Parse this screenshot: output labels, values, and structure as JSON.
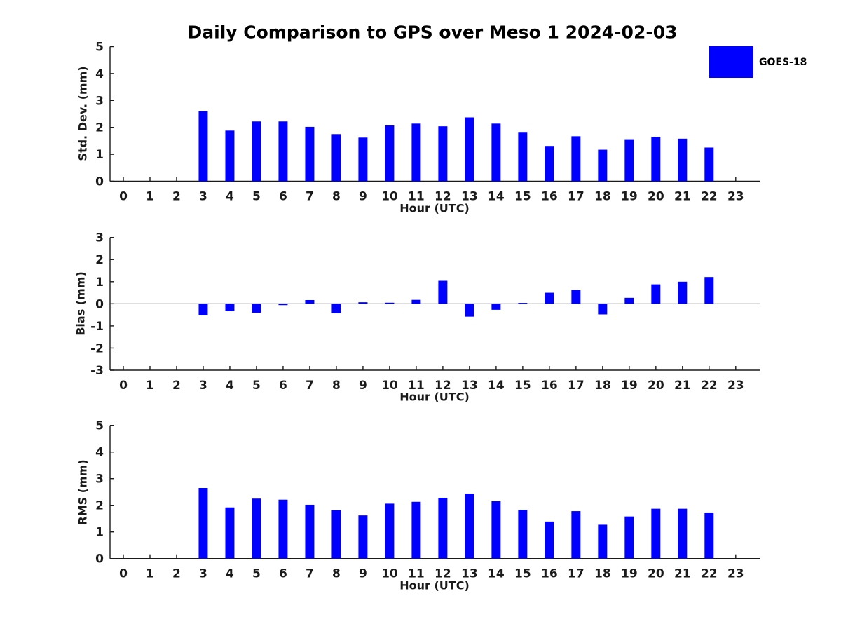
{
  "title": "Daily Comparison to GPS over Meso 1 2024-02-03",
  "legend": {
    "label": "GOES-18",
    "swatch_color": "#0000ff"
  },
  "palette": {
    "bar": "#0000ff",
    "axis": "#1a1a1a",
    "tick_text": "#1a1a1a"
  },
  "chart_data": [
    {
      "type": "bar",
      "name": "std-dev",
      "title": "",
      "ylabel": "Std. Dev. (mm)",
      "xlabel": "Hour (UTC)",
      "ylim": [
        0,
        5
      ],
      "yticks": [
        0,
        1,
        2,
        3,
        4,
        5
      ],
      "grid": false,
      "legend_position": "top-right",
      "categories": [
        0,
        1,
        2,
        3,
        4,
        5,
        6,
        7,
        8,
        9,
        10,
        11,
        12,
        13,
        14,
        15,
        16,
        17,
        18,
        19,
        20,
        21,
        22,
        23
      ],
      "series": [
        {
          "name": "GOES-18",
          "values": [
            null,
            null,
            null,
            2.6,
            1.88,
            2.22,
            2.22,
            2.02,
            1.75,
            1.62,
            2.07,
            2.14,
            2.04,
            2.37,
            2.14,
            1.83,
            1.31,
            1.67,
            1.17,
            1.56,
            1.65,
            1.58,
            1.25,
            null
          ]
        }
      ]
    },
    {
      "type": "bar",
      "name": "bias",
      "title": "",
      "ylabel": "Bias (mm)",
      "xlabel": "Hour (UTC)",
      "ylim": [
        -3,
        3
      ],
      "yticks": [
        -3,
        -2,
        -1,
        0,
        1,
        2,
        3
      ],
      "zero_line": true,
      "grid": false,
      "categories": [
        0,
        1,
        2,
        3,
        4,
        5,
        6,
        7,
        8,
        9,
        10,
        11,
        12,
        13,
        14,
        15,
        16,
        17,
        18,
        19,
        20,
        21,
        22,
        23
      ],
      "series": [
        {
          "name": "GOES-18",
          "values": [
            null,
            null,
            null,
            -0.52,
            -0.33,
            -0.4,
            -0.06,
            0.17,
            -0.43,
            0.07,
            0.05,
            0.18,
            1.04,
            -0.58,
            -0.27,
            0.04,
            0.5,
            0.63,
            -0.48,
            0.27,
            0.88,
            1.0,
            1.21,
            null
          ]
        }
      ]
    },
    {
      "type": "bar",
      "name": "rms",
      "title": "",
      "ylabel": "RMS (mm)",
      "xlabel": "Hour (UTC)",
      "ylim": [
        0,
        5
      ],
      "yticks": [
        0,
        1,
        2,
        3,
        4,
        5
      ],
      "grid": false,
      "categories": [
        0,
        1,
        2,
        3,
        4,
        5,
        6,
        7,
        8,
        9,
        10,
        11,
        12,
        13,
        14,
        15,
        16,
        17,
        18,
        19,
        20,
        21,
        22,
        23
      ],
      "series": [
        {
          "name": "GOES-18",
          "values": [
            null,
            null,
            null,
            2.65,
            1.92,
            2.25,
            2.21,
            2.02,
            1.81,
            1.62,
            2.06,
            2.13,
            2.28,
            2.44,
            2.15,
            1.83,
            1.39,
            1.78,
            1.27,
            1.58,
            1.87,
            1.87,
            1.73,
            null
          ]
        }
      ]
    }
  ]
}
